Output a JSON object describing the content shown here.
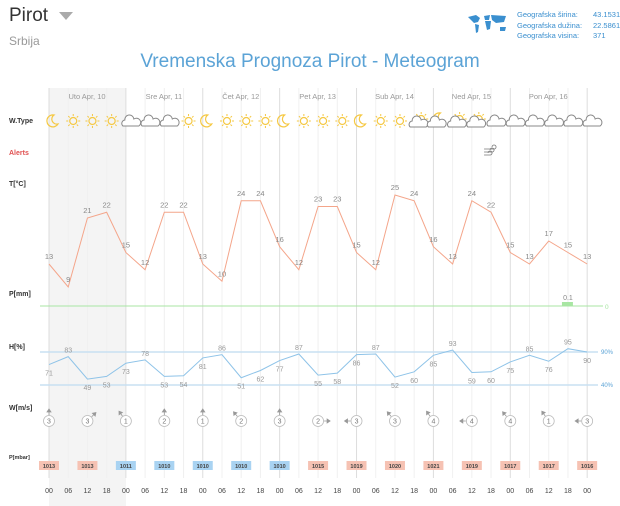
{
  "header": {
    "city": "Pirot",
    "country": "Srbija",
    "title": "Vremenska Prognoza Pirot - Meteogram",
    "geo": [
      {
        "label": "Geografska širina:",
        "value": "43.1531"
      },
      {
        "label": "Geografska dužina:",
        "value": "22.5861"
      },
      {
        "label": "Geografska visina:",
        "value": "371"
      }
    ],
    "map_icon": "world-map-icon"
  },
  "rows": {
    "wtype": "W.Type",
    "alerts": "Alerts",
    "temp": "T[°C]",
    "precip": "P[mm]",
    "hum": "H[%]",
    "wind": "W[m/s]",
    "pressure": "P[mbar]"
  },
  "days": [
    "Uto Apr, 10",
    "Sre Apr, 11",
    "Čet Apr, 12",
    "Pet Apr, 13",
    "Sub Apr, 14",
    "Ned Apr, 15",
    "Pon Apr, 16"
  ],
  "hours": [
    "00",
    "06",
    "12",
    "18",
    "00",
    "06",
    "12",
    "18",
    "00",
    "06",
    "12",
    "18",
    "00",
    "06",
    "12",
    "18",
    "00",
    "06",
    "12",
    "18",
    "00",
    "06",
    "12",
    "18",
    "00",
    "06",
    "12",
    "18",
    "00"
  ],
  "weather": [
    "moon",
    "sun",
    "sun",
    "sun",
    "cloud",
    "cloud",
    "cloud",
    "sun",
    "moon",
    "sun",
    "sun",
    "sun",
    "moon",
    "sun",
    "sun",
    "sun",
    "moon",
    "sun",
    "sun",
    "sun-cloud",
    "moon-cloud",
    "sun-cloud",
    "sun-cloud",
    "cloud",
    "cloud",
    "cloud",
    "cloud",
    "cloud",
    "cloud"
  ],
  "alerts": [
    {
      "index": 23,
      "icon": "wind-icon"
    }
  ],
  "temperature": [
    13,
    9,
    21,
    22,
    15,
    12,
    22,
    22,
    13,
    10,
    24,
    24,
    16,
    12,
    23,
    23,
    15,
    12,
    25,
    24,
    16,
    13,
    24,
    22,
    15,
    13,
    17,
    15,
    13
  ],
  "precipitation": {
    "values": [
      {
        "index": 27,
        "value": "0.1"
      }
    ],
    "baseline_label": "0"
  },
  "humidity": {
    "values": [
      71,
      83,
      49,
      53,
      73,
      78,
      53,
      54,
      81,
      86,
      51,
      62,
      77,
      87,
      55,
      58,
      86,
      87,
      52,
      60,
      85,
      93,
      59,
      60,
      75,
      85,
      76,
      95,
      90
    ],
    "ref_high": "90%",
    "ref_low": "40%"
  },
  "wind": [
    {
      "v": 3,
      "dir": 0
    },
    {
      "v": 3,
      "dir": 45
    },
    {
      "v": 1,
      "dir": -35
    },
    {
      "v": 2,
      "dir": 0
    },
    {
      "v": 1,
      "dir": 0
    },
    {
      "v": 2,
      "dir": -40
    },
    {
      "v": 3,
      "dir": 0
    },
    {
      "v": 2,
      "dir": 90
    },
    {
      "v": 3,
      "dir": -90
    },
    {
      "v": 3,
      "dir": -40
    },
    {
      "v": 4,
      "dir": -35
    },
    {
      "v": 4,
      "dir": -90
    },
    {
      "v": 4,
      "dir": -40
    },
    {
      "v": 1,
      "dir": -35
    },
    {
      "v": 3,
      "dir": -90
    }
  ],
  "pressure": [
    1013,
    1013,
    1011,
    1010,
    1010,
    1010,
    1010,
    1015,
    1019,
    1020,
    1021,
    1019,
    1017,
    1017,
    1016
  ],
  "colors": {
    "temp": "#f4a58a",
    "hum": "#8ec3e8",
    "precip": "#a8e6a3",
    "pressure_high": "#f6c2b3",
    "pressure_low": "#a9d3f2",
    "accent": "#5ba3d6",
    "sun": "#f5c842"
  }
}
